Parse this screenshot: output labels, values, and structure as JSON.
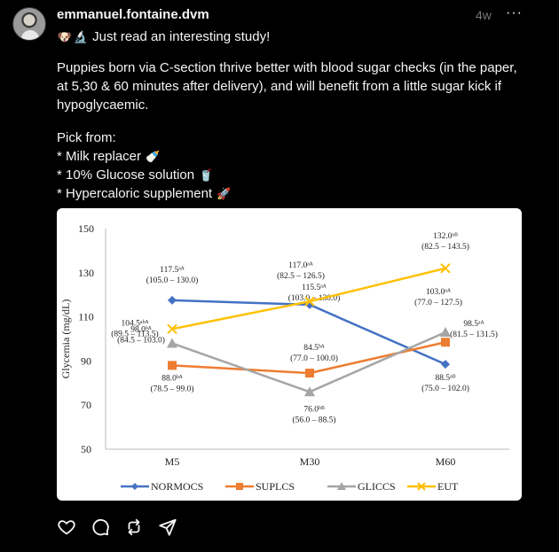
{
  "post": {
    "username": "emmanuel.fontaine.dvm",
    "time": "4w",
    "more": "···",
    "lead_emoji_1": "🐶",
    "lead_emoji_2": "🔬",
    "lead": "Just read an interesting study!",
    "body": "Puppies born via C-section thrive better with blood sugar checks (in the paper, at 5,30 & 60 minutes after delivery), and will benefit from a little sugar kick if hypoglycaemic.",
    "pick_title": "Pick from:",
    "options": [
      {
        "text": "* Milk replacer",
        "emoji": "🍼"
      },
      {
        "text": "* 10% Glucose solution",
        "emoji": "🥤"
      },
      {
        "text": "* Hypercaloric supplement",
        "emoji": "🚀"
      }
    ]
  },
  "chart_data": {
    "type": "line",
    "categories": [
      "M5",
      "M30",
      "M60"
    ],
    "ylabel": "Glycemia (mg/dL)",
    "xlabel": "",
    "title": "",
    "ylim": [
      50,
      150
    ],
    "yticks": [
      50,
      70,
      90,
      110,
      130,
      150
    ],
    "legend_position": "bottom",
    "grid": false,
    "series": [
      {
        "name": "NORMOCS",
        "color": "#4472c4",
        "marker": "diamond",
        "values": [
          117.5,
          115.5,
          88.5
        ],
        "labels": [
          [
            "117.5ᵃᴬ",
            "(105.0 – 130.0)"
          ],
          [
            "115.5ᵃᴬ",
            "(103.0 – 130.0)"
          ],
          [
            "88.5ᵃᴮ",
            "(75.0 – 102.0)"
          ]
        ]
      },
      {
        "name": "SUPLCS",
        "color": "#ed7d31",
        "marker": "square",
        "values": [
          88.0,
          84.5,
          98.5
        ],
        "labels": [
          [
            "88.0ᵇᴬ",
            "(78.5 – 99.0)"
          ],
          [
            "84.5ᵇᴬ",
            "(77.0 – 100.0)"
          ],
          [
            "98.5ᵃᴬ",
            "(81.5 – 131.5)"
          ]
        ]
      },
      {
        "name": "GLICCS",
        "color": "#a5a5a5",
        "marker": "triangle",
        "values": [
          98.0,
          76.0,
          103.0
        ],
        "labels": [
          [
            "98.0ᵇᴬ",
            "(84.5 – 103.0)"
          ],
          [
            "76.0ᵇᴮ",
            "(56.0 – 88.5)"
          ],
          [
            "103.0ᵃᴬ",
            "(77.0 – 127.5)"
          ]
        ]
      },
      {
        "name": "EUT",
        "color": "#ffc000",
        "marker": "x",
        "values": [
          104.5,
          117.0,
          132.0
        ],
        "labels": [
          [
            "104.5ᵃᵇᴬ",
            "(89.5 – 113.5)"
          ],
          [
            "117.0ᵃᴬ",
            "(82.5 – 126.5)"
          ],
          [
            "132.0ᵃᴮ",
            "(82.5 – 143.5)"
          ]
        ]
      }
    ]
  },
  "actions": {
    "like": "heart-icon",
    "comment": "comment-icon",
    "repost": "repost-icon",
    "share": "share-icon"
  }
}
